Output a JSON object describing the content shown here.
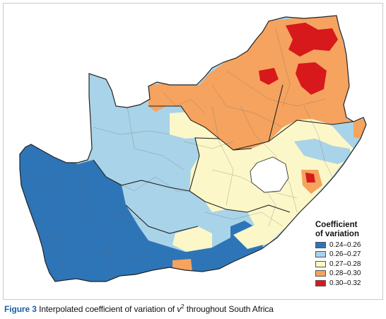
{
  "legend": {
    "title_line1": "Coefficient",
    "title_line2": "of variation",
    "items": [
      {
        "label": "0.24–0.26",
        "color": "#2e75b8"
      },
      {
        "label": "0.26–0.27",
        "color": "#a9d3e8"
      },
      {
        "label": "0.27–0.28",
        "color": "#fbf7c8"
      },
      {
        "label": "0.28–0.30",
        "color": "#f5a35f"
      },
      {
        "label": "0.30–0.32",
        "color": "#d7191c"
      }
    ]
  },
  "caption": {
    "figure_label": "Figure 3",
    "text_before": "Interpolated coefficient of variation of ",
    "variable": "v",
    "superscript": "2",
    "text_after": " throughout South Africa"
  }
}
